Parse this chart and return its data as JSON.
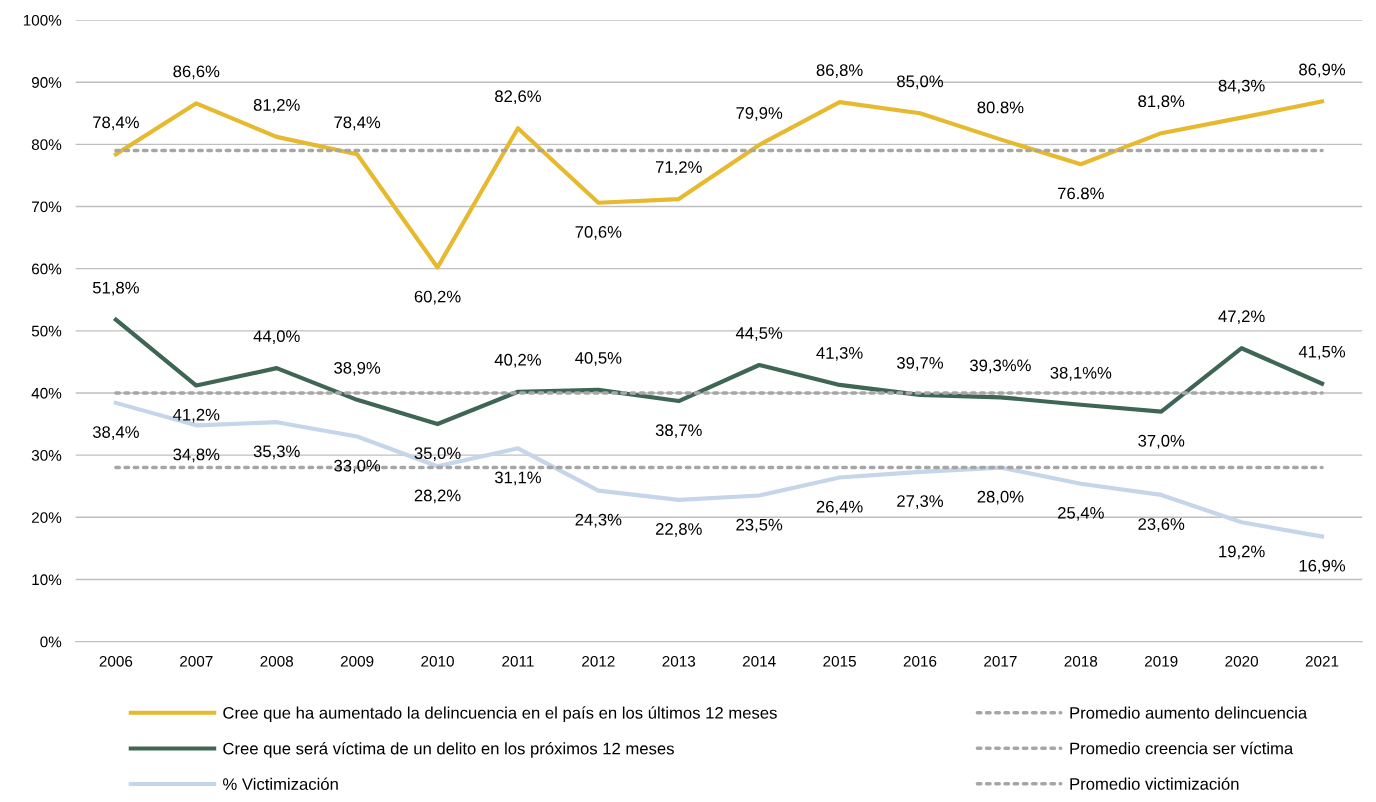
{
  "chart_data": {
    "type": "line",
    "categories": [
      "2006",
      "2007",
      "2008",
      "2009",
      "2010",
      "2011",
      "2012",
      "2013",
      "2014",
      "2015",
      "2016",
      "2017",
      "2018",
      "2019",
      "2020",
      "2021"
    ],
    "ylim": [
      0,
      100
    ],
    "yticks": [
      {
        "value": 0,
        "label": "0%"
      },
      {
        "value": 10,
        "label": "10%"
      },
      {
        "value": 20,
        "label": "20%"
      },
      {
        "value": 30,
        "label": "30%"
      },
      {
        "value": 40,
        "label": "40%"
      },
      {
        "value": 50,
        "label": "50%"
      },
      {
        "value": 60,
        "label": "60%"
      },
      {
        "value": 70,
        "label": "70%"
      },
      {
        "value": 80,
        "label": "80%"
      },
      {
        "value": 90,
        "label": "90%"
      },
      {
        "value": 100,
        "label": "100%"
      }
    ],
    "grid": "y",
    "legend": "bottom",
    "marker": "none",
    "series": [
      {
        "name": "Cree que ha aumentado la delincuencia en el país en los últimos 12 meses",
        "color": "#e6b92e",
        "line_style": "solid",
        "values": [
          78.4,
          86.6,
          81.2,
          78.4,
          60.2,
          82.6,
          70.6,
          71.2,
          79.9,
          86.8,
          85.0,
          80.8,
          76.8,
          81.8,
          84.3,
          86.9
        ],
        "value_labels": [
          "78,4%",
          "86,6%",
          "81,2%",
          "78,4%",
          "60,2%",
          "82,6%",
          "70,6%",
          "71,2%",
          "79,9%",
          "86,8%",
          "85,0%",
          "80.8%",
          "76.8%",
          "81,8%",
          "84,3%",
          "86,9%"
        ]
      },
      {
        "name": "Cree que será víctima de un delito en los próximos 12 meses",
        "color": "#3f6655",
        "line_style": "solid",
        "values": [
          51.8,
          41.2,
          44.0,
          38.9,
          35.0,
          40.2,
          40.5,
          38.7,
          44.5,
          41.3,
          39.7,
          39.3,
          38.1,
          37.0,
          47.2,
          41.5
        ],
        "value_labels": [
          "51,8%",
          "41,2%",
          "44,0%",
          "38,9%",
          "35,0%",
          "40,2%",
          "40,5%",
          "38,7%",
          "44,5%",
          "41,3%",
          "39,7%",
          "39,3%%",
          "38,1%%",
          "37,0%",
          "47,2%",
          "41,5%"
        ]
      },
      {
        "name": "% Victimización",
        "color": "#c5d5ea",
        "line_style": "solid",
        "values": [
          38.4,
          34.8,
          35.3,
          33.0,
          28.2,
          31.1,
          24.3,
          22.8,
          23.5,
          26.4,
          27.3,
          28.0,
          25.4,
          23.6,
          19.2,
          16.9
        ],
        "value_labels": [
          "38,4%",
          "34,8%",
          "35,3%",
          "33,0%",
          "28,2%",
          "31,1%",
          "24,3%",
          "22,8%",
          "23,5%",
          "26,4%",
          "27,3%",
          "28,0%",
          "25,4%",
          "23,6%",
          "19,2%",
          "16,9%"
        ]
      },
      {
        "name": "Promedio aumento delincuencia",
        "color": "#a6a6a6",
        "line_style": "dotted",
        "values": [
          79,
          79,
          79,
          79,
          79,
          79,
          79,
          79,
          79,
          79,
          79,
          79,
          79,
          79,
          79,
          79
        ]
      },
      {
        "name": "Promedio creencia ser víctima",
        "color": "#a6a6a6",
        "line_style": "dotted",
        "values": [
          40,
          40,
          40,
          40,
          40,
          40,
          40,
          40,
          40,
          40,
          40,
          40,
          40,
          40,
          40,
          40
        ]
      },
      {
        "name": "Promedio victimización",
        "color": "#a6a6a6",
        "line_style": "dotted",
        "values": [
          28,
          28,
          28,
          28,
          28,
          28,
          28,
          28,
          28,
          28,
          28,
          28,
          28,
          28,
          28,
          28
        ]
      }
    ]
  }
}
